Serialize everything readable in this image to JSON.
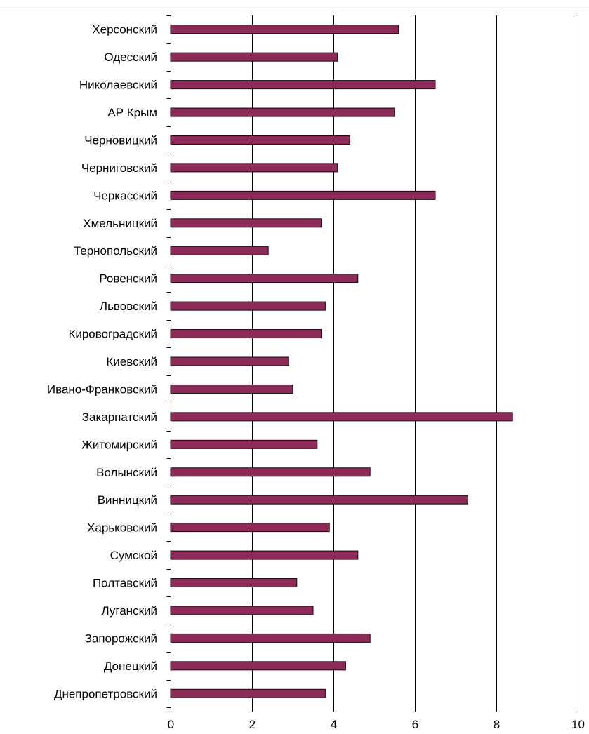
{
  "chart_data": {
    "type": "bar",
    "orientation": "horizontal",
    "categories": [
      "Херсонский",
      "Одесский",
      "Николаевский",
      "АР Крым",
      "Черновицкий",
      "Черниговский",
      "Черкасский",
      "Хмельницкий",
      "Тернопольский",
      "Ровенский",
      "Львовский",
      "Кировоградский",
      "Киевский",
      "Ивано-Франковский",
      "Закарпатский",
      "Житомирский",
      "Волынский",
      "Винницкий",
      "Харьковский",
      "Сумской",
      "Полтавский",
      "Луганский",
      "Запорожский",
      "Донецкий",
      "Днепропетровский"
    ],
    "values": [
      5.6,
      4.1,
      6.5,
      5.5,
      4.4,
      4.1,
      6.5,
      3.7,
      2.4,
      4.6,
      3.8,
      3.7,
      2.9,
      3.0,
      8.4,
      3.6,
      4.9,
      7.3,
      3.9,
      4.6,
      3.1,
      3.5,
      4.9,
      4.3,
      3.8
    ],
    "x_ticks": [
      "0",
      "2",
      "4",
      "6",
      "8",
      "10"
    ],
    "xlim": [
      0,
      10
    ],
    "gridlines": "vertical",
    "bar_color": "#8c2b58",
    "title": "",
    "xlabel": "",
    "ylabel": ""
  }
}
